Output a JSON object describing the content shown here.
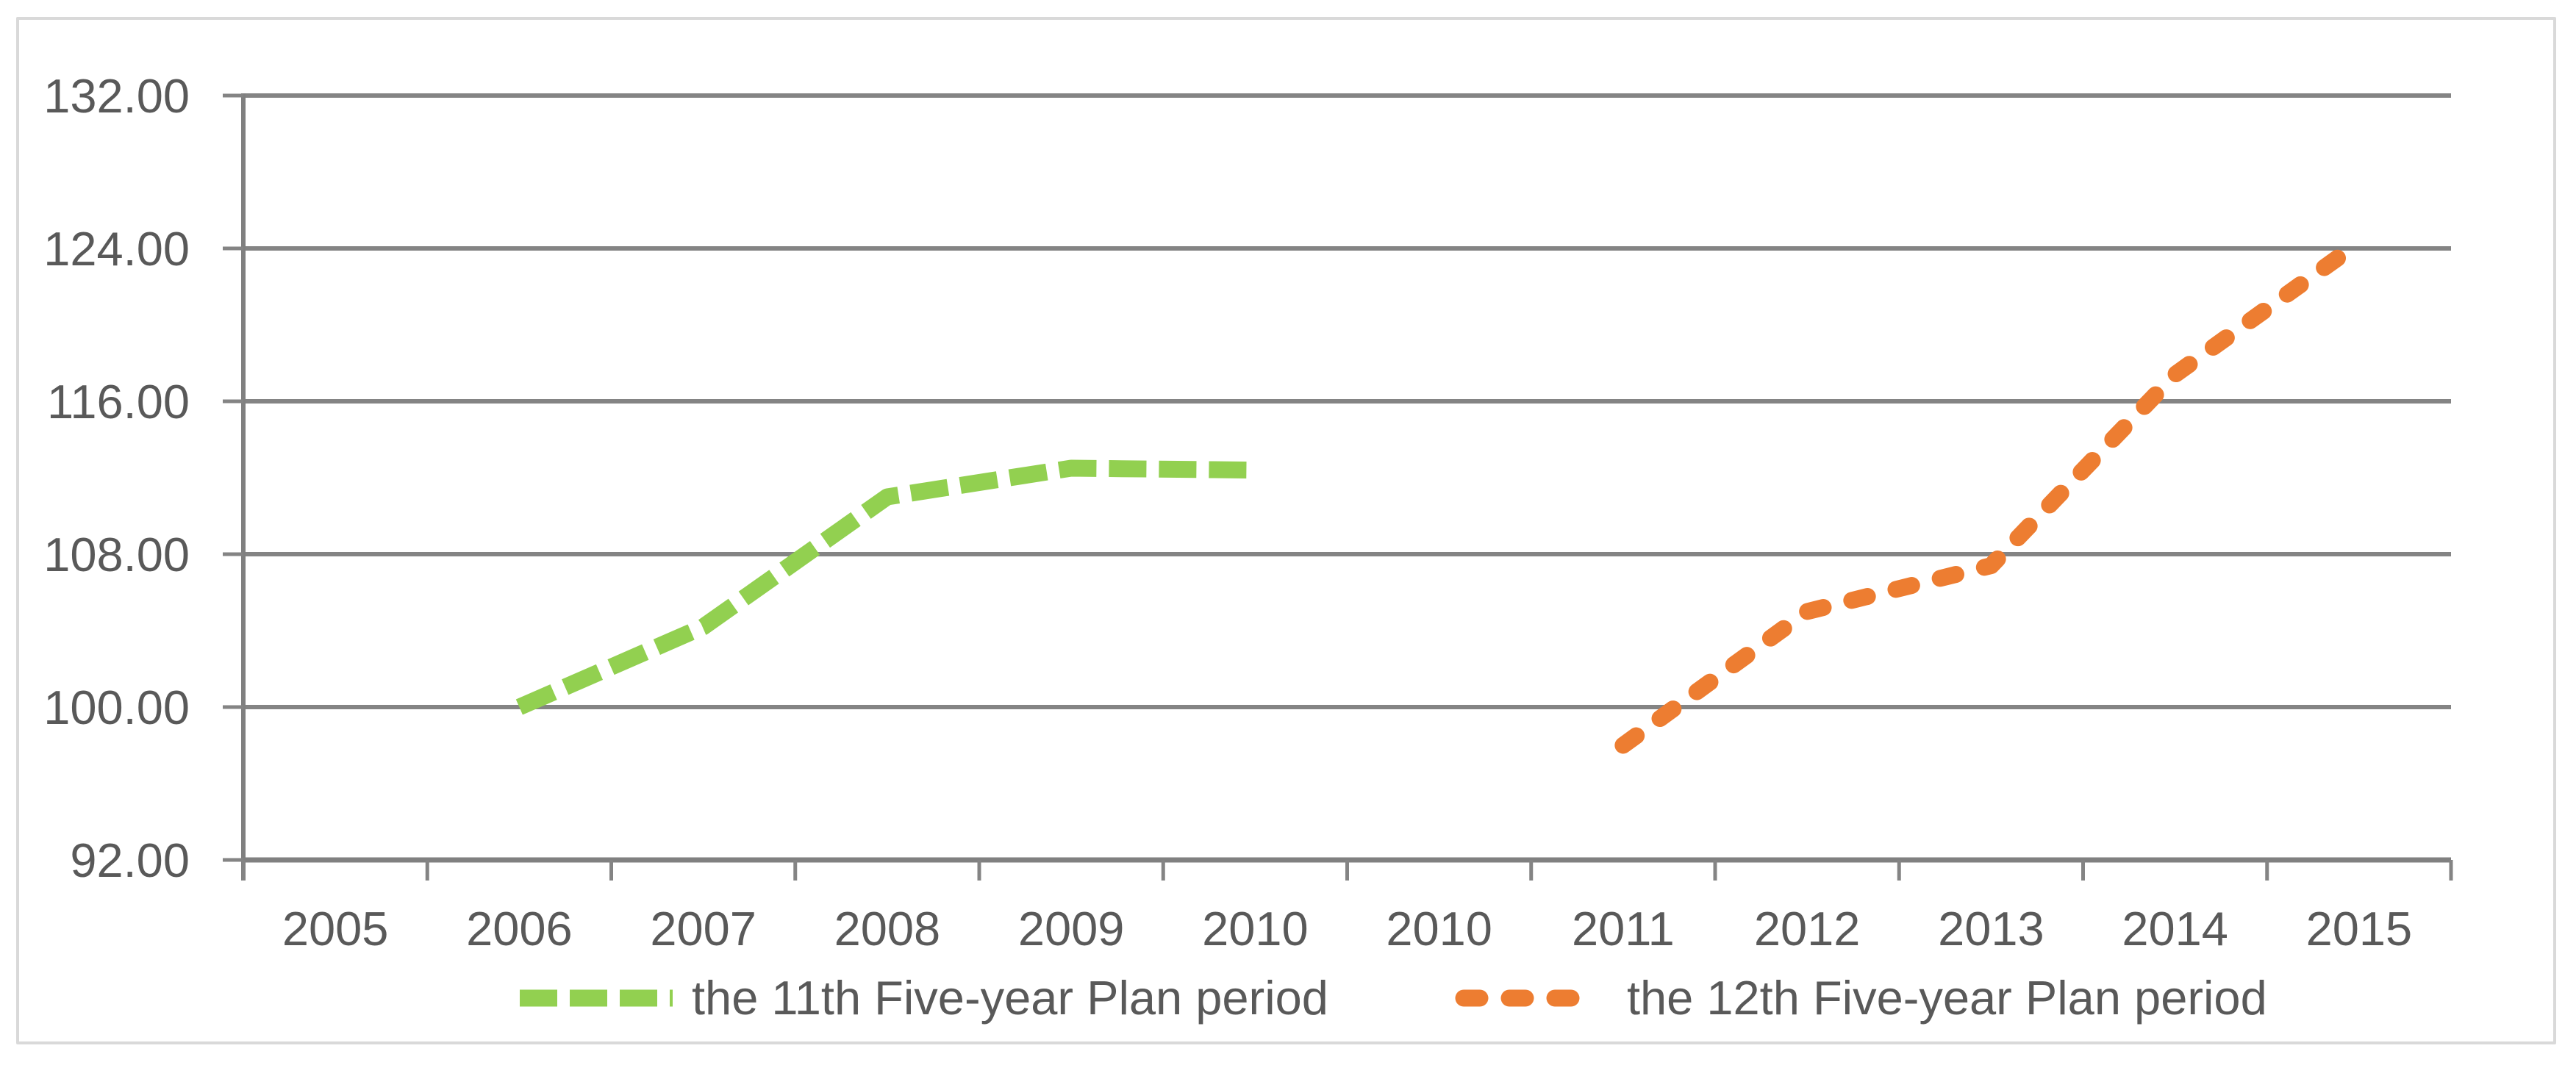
{
  "chart_data": {
    "type": "line",
    "title": "",
    "xlabel": "",
    "ylabel": "",
    "grid": true,
    "legend_position": "bottom",
    "categories": [
      "2005",
      "2006",
      "2007",
      "2008",
      "2009",
      "2010",
      "2010",
      "2011",
      "2012",
      "2013",
      "2014",
      "2015"
    ],
    "y_axis": {
      "min": 92,
      "max": 132,
      "step": 8,
      "tick_values": [
        132,
        124,
        116,
        108,
        100,
        92
      ],
      "tick_labels": [
        "132.00",
        "124.00",
        "116.00",
        "108.00",
        "100.00",
        "92.00"
      ]
    },
    "series": [
      {
        "name": "the 11th Five-year Plan period",
        "color": "#92d050",
        "line_style": "dashed",
        "points": [
          {
            "category_index": 1,
            "year": "2006",
            "value": 100.0
          },
          {
            "category_index": 2,
            "year": "2007",
            "value": 104.2
          },
          {
            "category_index": 3,
            "year": "2008",
            "value": 111.0
          },
          {
            "category_index": 4,
            "year": "2009",
            "value": 112.5
          },
          {
            "category_index": 5,
            "year": "2010",
            "value": 112.4
          }
        ]
      },
      {
        "name": "the 12th Five-year Plan period",
        "color": "#ed7d31",
        "line_style": "dashed-round",
        "points": [
          {
            "category_index": 7,
            "year": "2011",
            "value": 98.0
          },
          {
            "category_index": 8,
            "year": "2012",
            "value": 105.0
          },
          {
            "category_index": 9,
            "year": "2013",
            "value": 107.4
          },
          {
            "category_index": 10,
            "year": "2014",
            "value": 117.4
          },
          {
            "category_index": 11,
            "year": "2015",
            "value": 124.3
          }
        ]
      }
    ],
    "colors": {
      "gridline": "#848484",
      "axis_line": "#808080",
      "tick_text": "#595959",
      "chart_border": "#d9d9d9",
      "background": "#ffffff"
    }
  }
}
